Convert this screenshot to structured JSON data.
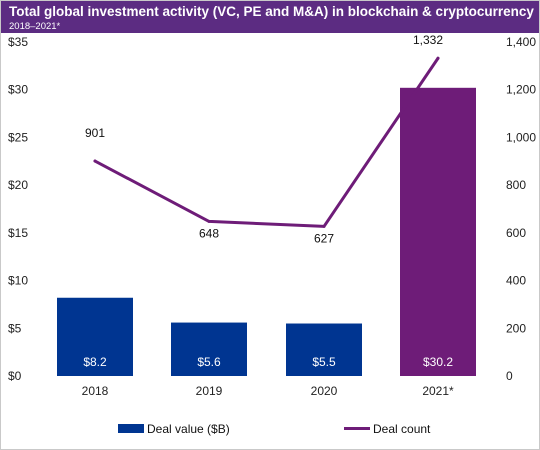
{
  "header": {
    "title": "Total global investment activity (VC, PE and M&A) in blockchain & cryptocurrency",
    "subtitle": "2018–2021*"
  },
  "colors": {
    "header_bg": "#5c2c82",
    "bar_default": "#003591",
    "bar_highlight": "#6e1c78",
    "line": "#6e1c78"
  },
  "chart_data": {
    "type": "bar+line",
    "title": "Total global investment activity (VC, PE and M&A) in blockchain & cryptocurrency",
    "subtitle": "2018–2021*",
    "categories": [
      "2018",
      "2019",
      "2020",
      "2021*"
    ],
    "series": [
      {
        "name": "Deal value ($B)",
        "type": "bar",
        "axis": "left",
        "values": [
          8.2,
          5.6,
          5.5,
          30.2
        ],
        "labels": [
          "$8.2",
          "$5.6",
          "$5.5",
          "$30.2"
        ]
      },
      {
        "name": "Deal count",
        "type": "line",
        "axis": "right",
        "values": [
          901,
          648,
          627,
          1332
        ],
        "labels": [
          "901",
          "648",
          "627",
          "1,332"
        ]
      }
    ],
    "y_left": {
      "range": [
        0,
        35
      ],
      "ticks": [
        0,
        5,
        10,
        15,
        20,
        25,
        30,
        35
      ],
      "tick_labels": [
        "$0",
        "$5",
        "$10",
        "$15",
        "$20",
        "$25",
        "$30",
        "$35"
      ]
    },
    "y_right": {
      "range": [
        0,
        1400
      ],
      "ticks": [
        0,
        200,
        400,
        600,
        800,
        1000,
        1200,
        1400
      ],
      "tick_labels": [
        "0",
        "200",
        "400",
        "600",
        "800",
        "1,000",
        "1,200",
        "1,400"
      ]
    },
    "grid": false,
    "legend": {
      "position": "bottom",
      "items": [
        "Deal value ($B)",
        "Deal count"
      ]
    }
  }
}
